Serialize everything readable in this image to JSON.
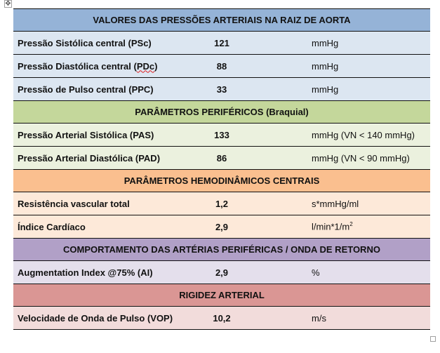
{
  "colors": {
    "s1_header": "#95b3d7",
    "s1_row": "#dce6f1",
    "s2_header": "#c4d79b",
    "s2_row": "#ebf1de",
    "s3_header": "#fabf8f",
    "s3_row": "#fde9d9",
    "s4_header": "#b1a0c7",
    "s4_row": "#e4dfec",
    "s5_header": "#da9694",
    "s5_row": "#f2dcdb"
  },
  "sections": [
    {
      "title": "VALORES DAS PRESSÕES ARTERIAIS NA RAIZ DE AORTA",
      "rows": [
        {
          "label": "Pressão Sistólica central (PSc)",
          "value": "121",
          "unit": "mmHg"
        },
        {
          "label_prefix": "Pressão Diastólica central (",
          "label_flagged": "PDc",
          "label_suffix": ")",
          "value": "88",
          "unit": "mmHg"
        },
        {
          "label": "Pressão de Pulso central (PPC)",
          "value": "33",
          "unit": "mmHg"
        }
      ]
    },
    {
      "title": "PARÂMETROS PERIFÉRICOS (Braquial)",
      "rows": [
        {
          "label": "Pressão Arterial Sistólica (PAS)",
          "value": "133",
          "unit": "mmHg (VN < 140 mmHg)"
        },
        {
          "label": "Pressão Arterial Diastólica (PAD)",
          "value": "86",
          "unit": "mmHg (VN < 90 mmHg)"
        }
      ]
    },
    {
      "title": "PARÂMETROS HEMODINÂMICOS CENTRAIS",
      "rows": [
        {
          "label": "Resistência vascular total",
          "value": "1,2",
          "unit": "s*mmHg/ml"
        },
        {
          "label": "Índice Cardíaco",
          "value": "2,9",
          "unit_base": "l/min*1/m",
          "unit_sup": "2"
        }
      ]
    },
    {
      "title": "COMPORTAMENTO DAS ARTÉRIAS PERIFÉRICAS / ONDA DE RETORNO",
      "rows": [
        {
          "label": "Augmentation Index @75% (AI)",
          "value": "2,9",
          "unit": "%"
        }
      ]
    },
    {
      "title": "RIGIDEZ ARTERIAL",
      "rows": [
        {
          "label": "Velocidade de Onda de Pulso (VOP)",
          "value": "10,2",
          "unit": "m/s"
        }
      ]
    }
  ],
  "icons": {
    "move": "✥"
  }
}
